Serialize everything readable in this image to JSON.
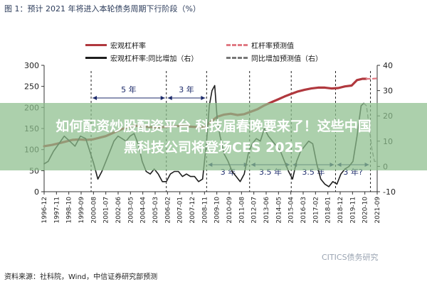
{
  "figure": {
    "title": "图 1：预计 2021 年将进入本轮债务周期下行阶段（%）",
    "source": "资料来源：社科院，Wind，中信证券研究部预测",
    "watermark": "CITICS债务研究"
  },
  "overlay": {
    "line1": "如何配资炒股配资平台 科技届春晚要来了！这些中国",
    "line2": "黑科技公司将登场CES 2025"
  },
  "legend": [
    {
      "label": "宏观杠杆率",
      "color": "#b0383e",
      "style": "solid"
    },
    {
      "label": "杠杆率预测值",
      "color": "#e07a84",
      "style": "dashed"
    },
    {
      "label": "宏观杠杆率:同比增加（右）",
      "color": "#1e1e1e",
      "style": "solid"
    },
    {
      "label": "同比增加预测值（右）",
      "color": "#777777",
      "style": "dashed"
    }
  ],
  "annotations": [
    "5 年",
    "3 年",
    "3 年",
    "3.5 年",
    "3.5 年",
    "3 年?"
  ],
  "chart_data": {
    "type": "line",
    "left_axis": {
      "ticks": [
        0,
        50,
        100,
        150,
        200,
        250,
        300
      ],
      "ylim": [
        0,
        300
      ]
    },
    "right_axis": {
      "ticks": [
        -10,
        0,
        10,
        20,
        30,
        40
      ],
      "ylim": [
        -10,
        40
      ]
    },
    "x_ticks": [
      "1996-12",
      "1997-11",
      "1998-10",
      "1999-09",
      "2000-08",
      "2001-07",
      "2002-06",
      "2003-05",
      "2004-04",
      "2005-03",
      "2006-02",
      "2007-01",
      "2007-12",
      "2008-11",
      "2009-10",
      "2010-09",
      "2011-08",
      "2012-07",
      "2013-06",
      "2014-05",
      "2015-04",
      "2016-03",
      "2017-02",
      "2018-01",
      "2018-12",
      "2019-11",
      "2020-10",
      "2021-09"
    ],
    "series": [
      {
        "name": "宏观杠杆率",
        "axis": "left",
        "color": "#b0383e",
        "style": "solid",
        "width": 3.2,
        "x": [
          1996.9,
          1997.5,
          1998.0,
          1998.5,
          1999.0,
          1999.5,
          2000.0,
          2000.5,
          2001.0,
          2001.5,
          2002.0,
          2002.5,
          2003.0,
          2003.5,
          2004.0,
          2004.5,
          2005.0,
          2005.5,
          2006.0,
          2006.5,
          2007.0,
          2007.5,
          2008.0,
          2008.5,
          2008.9,
          2009.3,
          2009.8,
          2010.3,
          2010.8,
          2011.3,
          2011.8,
          2012.3,
          2012.8,
          2013.3,
          2013.8,
          2014.3,
          2014.8,
          2015.3,
          2015.8,
          2016.3,
          2016.8,
          2017.3,
          2017.8,
          2018.3,
          2018.8,
          2019.3,
          2019.8,
          2020.2,
          2020.6,
          2020.9
        ],
        "values": [
          108,
          111,
          115,
          119,
          123,
          124,
          123,
          124,
          128,
          132,
          139,
          146,
          152,
          156,
          156,
          154,
          153,
          153,
          154,
          155,
          156,
          155,
          154,
          153,
          154,
          166,
          178,
          183,
          185,
          182,
          184,
          190,
          196,
          205,
          212,
          219,
          226,
          232,
          238,
          242,
          245,
          247,
          247,
          245,
          246,
          250,
          252,
          265,
          268,
          268
        ]
      },
      {
        "name": "杠杆率预测值",
        "axis": "left",
        "color": "#e07a84",
        "style": "dashed",
        "width": 2.2,
        "x": [
          2020.9,
          2021.3,
          2021.7
        ],
        "values": [
          268,
          268,
          269
        ]
      },
      {
        "name": "宏观杠杆率:同比增加（右）",
        "axis": "right",
        "color": "#1e1e1e",
        "style": "solid",
        "width": 1.6,
        "x": [
          1996.9,
          1997.2,
          1997.6,
          1998.0,
          1998.4,
          1998.8,
          1999.2,
          1999.6,
          2000.0,
          2000.3,
          2000.6,
          2000.9,
          2001.2,
          2001.5,
          2001.8,
          2002.1,
          2002.4,
          2002.7,
          2003.0,
          2003.3,
          2003.6,
          2003.9,
          2004.2,
          2004.5,
          2004.8,
          2005.1,
          2005.4,
          2005.7,
          2006.0,
          2006.3,
          2006.6,
          2006.9,
          2007.2,
          2007.5,
          2007.8,
          2008.1,
          2008.4,
          2008.7,
          2009.0,
          2009.2,
          2009.4,
          2009.6,
          2009.8,
          2010.0,
          2010.3,
          2010.6,
          2010.9,
          2011.2,
          2011.5,
          2011.8,
          2012.1,
          2012.4,
          2012.7,
          2013.0,
          2013.3,
          2013.6,
          2013.9,
          2014.2,
          2014.5,
          2014.8,
          2015.1,
          2015.4,
          2015.7,
          2016.0,
          2016.3,
          2016.6,
          2016.9,
          2017.2,
          2017.5,
          2017.8,
          2018.1,
          2018.4,
          2018.7,
          2019.0,
          2019.3,
          2019.6,
          2019.9,
          2020.2,
          2020.5,
          2020.7
        ],
        "values": [
          1,
          2,
          6,
          9,
          12,
          10,
          8,
          12,
          11,
          6,
          1,
          -5,
          -2,
          2,
          6,
          10,
          12,
          11,
          10,
          12,
          13,
          9,
          2,
          -2,
          -3,
          -1,
          -3,
          -6,
          -6,
          -3,
          -2,
          -2,
          -4,
          -3,
          -4,
          -4,
          -6,
          -5,
          10,
          24,
          30,
          32,
          18,
          12,
          5,
          2,
          -2,
          -4,
          -6,
          -3,
          5,
          9,
          11,
          10,
          15,
          12,
          10,
          8,
          6,
          2,
          -2,
          -5,
          2,
          6,
          8,
          10,
          9,
          1,
          -5,
          -7,
          -8,
          -6,
          -7,
          -3,
          -1,
          0,
          2,
          12,
          24,
          25
        ]
      },
      {
        "name": "同比增加预测值（右）",
        "axis": "right",
        "color": "#777777",
        "style": "dashed",
        "width": 1.4,
        "x": [
          2020.7,
          2020.9,
          2021.1,
          2021.3,
          2021.5,
          2021.7
        ],
        "values": [
          25,
          24,
          16,
          7,
          2,
          2
        ]
      }
    ]
  }
}
